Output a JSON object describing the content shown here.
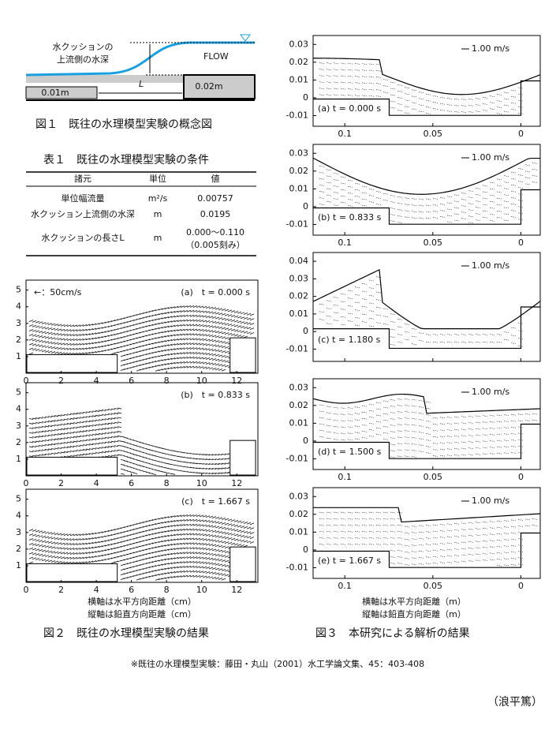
{
  "fig1": {
    "caption": "図１　既往の水理模型実験の概念図",
    "depth_label": [
      "水クッションの",
      "上流側の水深"
    ],
    "flow": "FLOW",
    "length": "L",
    "step_low": "0.01m",
    "step_high": "0.02m"
  },
  "table1": {
    "title": "表１　既往の水理模型実験の条件",
    "header": [
      "諸元",
      "単位",
      "値"
    ],
    "rows": [
      [
        "単位幅流量",
        "m²/s",
        "0.00757"
      ],
      [
        "水クッション上流側の水深",
        "m",
        "0.0195"
      ],
      [
        "水クッションの長さL",
        "m",
        [
          "0.000～0.110",
          "（0.005刻み）"
        ]
      ]
    ]
  },
  "fig2": {
    "caption": "図２　既往の水理模型実験の結果",
    "legend": "←：50cm/s",
    "xlim": [
      0,
      13.2
    ],
    "ylim": [
      0,
      5.6
    ],
    "xticks": [
      0,
      2,
      4,
      6,
      8,
      10,
      12
    ],
    "yticks": [
      1,
      2,
      3,
      4,
      5
    ],
    "panels": [
      {
        "label": "(a)　t = 0.000 s"
      },
      {
        "label": "(b)　t = 0.833 s"
      },
      {
        "label": "(c)　t = 1.667 s"
      }
    ],
    "axis_notes": [
      "横軸は水平方向距離（cm）",
      "縦軸は鉛直方向距離（cm）"
    ]
  },
  "fig3": {
    "caption": "図３　本研究による解析の結果",
    "legend": "1.00 m/s",
    "xlim": [
      0.118,
      -0.011
    ],
    "xticks": [
      0.1,
      0.05,
      0
    ],
    "panels": [
      {
        "label": "(a) t = 0.000 s",
        "ylim": [
          -0.016,
          0.035
        ],
        "yticks": [
          -0.01,
          0,
          0.01,
          0.02,
          0.03
        ],
        "x_tick_labels": true
      },
      {
        "label": "(b) t = 0.833 s",
        "ylim": [
          -0.016,
          0.035
        ],
        "yticks": [
          -0.01,
          0,
          0.01,
          0.02,
          0.03
        ],
        "x_tick_labels": true
      },
      {
        "label": "(c) t = 1.180 s",
        "ylim": [
          -0.017,
          0.045
        ],
        "yticks": [
          -0.01,
          0,
          0.01,
          0.02,
          0.03,
          0.04
        ],
        "x_tick_labels": false
      },
      {
        "label": "(d) t = 1.500 s",
        "ylim": [
          -0.016,
          0.035
        ],
        "yticks": [
          -0.01,
          0,
          0.01,
          0.02,
          0.03
        ],
        "x_tick_labels": true
      },
      {
        "label": "(e) t = 1.667 s",
        "ylim": [
          -0.016,
          0.035
        ],
        "yticks": [
          -0.01,
          0,
          0.01,
          0.02,
          0.03
        ],
        "x_tick_labels": true
      }
    ],
    "axis_notes": [
      "横軸は水平方向距離（m）",
      "縦軸は鉛直方向距離（m）"
    ]
  },
  "footnote": "※既往の水理模型実験：藤田・丸山（2001）水工学論文集、45：403-408",
  "author": "（浪平篤）"
}
